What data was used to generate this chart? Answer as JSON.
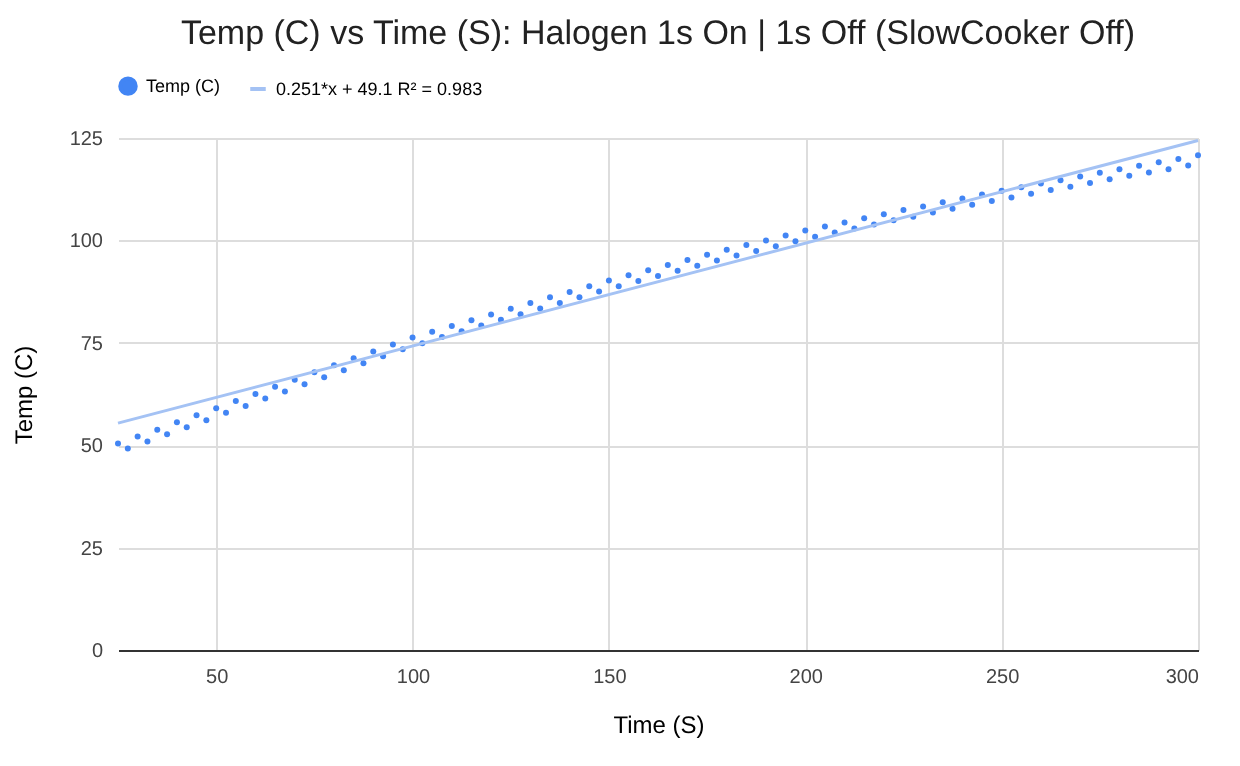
{
  "chart_data": {
    "type": "scatter",
    "title": "Temp (C) vs Time (S): Halogen 1s On | 1s Off (SlowCooker Off)",
    "xlabel": "Time (S)",
    "ylabel": "Temp (C)",
    "xlim": [
      25,
      300
    ],
    "xticks": [
      50,
      100,
      150,
      200,
      250,
      300
    ],
    "ylim": [
      0,
      125
    ],
    "yticks": [
      0,
      25,
      50,
      75,
      100,
      125
    ],
    "grid": true,
    "legend": "top",
    "series": [
      {
        "name": "Temp (C)",
        "color": "#4285f4",
        "marker": "circle",
        "x": [
          25,
          30,
          35,
          40,
          45,
          50,
          55,
          60,
          65,
          70,
          75,
          80,
          85,
          90,
          95,
          100,
          105,
          110,
          115,
          120,
          125,
          130,
          135,
          140,
          145,
          150,
          155,
          160,
          165,
          170,
          175,
          180,
          185,
          190,
          195,
          200,
          205,
          210,
          215,
          220,
          225,
          230,
          235,
          240,
          245,
          250,
          255,
          260,
          265,
          270,
          275,
          280,
          285,
          290,
          295,
          300,
          27.5,
          32.5,
          37.5,
          42.5,
          47.5,
          52.5,
          57.5,
          62.5,
          67.5,
          72.5,
          77.5,
          82.5,
          87.5,
          92.5,
          97.5,
          102.5,
          107.5,
          112.5,
          117.5,
          122.5,
          127.5,
          132.5,
          137.5,
          142.5,
          147.5,
          152.5,
          157.5,
          162.5,
          167.5,
          172.5,
          177.5,
          182.5,
          187.5,
          192.5,
          197.5,
          202.5,
          207.5,
          212.5,
          217.5,
          222.5,
          227.5,
          232.5,
          237.5,
          242.5,
          247.5,
          252.5,
          257.5,
          262.5,
          267.5,
          272.5,
          277.5,
          282.5,
          287.5,
          292.5,
          297.5
        ],
        "values": [
          50.4,
          52.1,
          53.8,
          55.6,
          57.3,
          59.0,
          60.8,
          62.5,
          64.3,
          66.0,
          67.8,
          69.5,
          71.2,
          72.9,
          74.6,
          76.3,
          77.7,
          79.1,
          80.5,
          81.9,
          83.3,
          84.7,
          86.1,
          87.4,
          88.8,
          90.2,
          91.5,
          92.7,
          94.0,
          95.2,
          96.5,
          97.7,
          98.9,
          100.0,
          101.2,
          102.4,
          103.4,
          104.4,
          105.4,
          106.4,
          107.4,
          108.3,
          109.3,
          110.2,
          111.2,
          112.1,
          113.0,
          113.9,
          114.7,
          115.6,
          116.5,
          117.4,
          118.2,
          119.1,
          119.9,
          120.8,
          49.2,
          50.9,
          52.7,
          54.4,
          56.1,
          57.9,
          59.6,
          61.4,
          63.1,
          64.9,
          66.6,
          68.3,
          70.0,
          71.7,
          73.4,
          74.9,
          76.4,
          77.8,
          79.2,
          80.6,
          82.0,
          83.4,
          84.7,
          86.1,
          87.5,
          88.8,
          90.1,
          91.3,
          92.6,
          93.8,
          95.1,
          96.3,
          97.4,
          98.6,
          99.8,
          100.9,
          101.9,
          102.9,
          103.9,
          104.9,
          105.8,
          106.8,
          107.7,
          108.7,
          109.6,
          110.5,
          111.4,
          112.3,
          113.1,
          114.0,
          114.9,
          115.8,
          116.6,
          117.4,
          118.3
        ]
      },
      {
        "name": "0.251*x + 49.1 R² = 0.983",
        "type": "line",
        "marker": "none",
        "color": "#a4c2f4",
        "x": [
          25,
          300
        ],
        "values": [
          55.4,
          124.4
        ]
      }
    ]
  }
}
